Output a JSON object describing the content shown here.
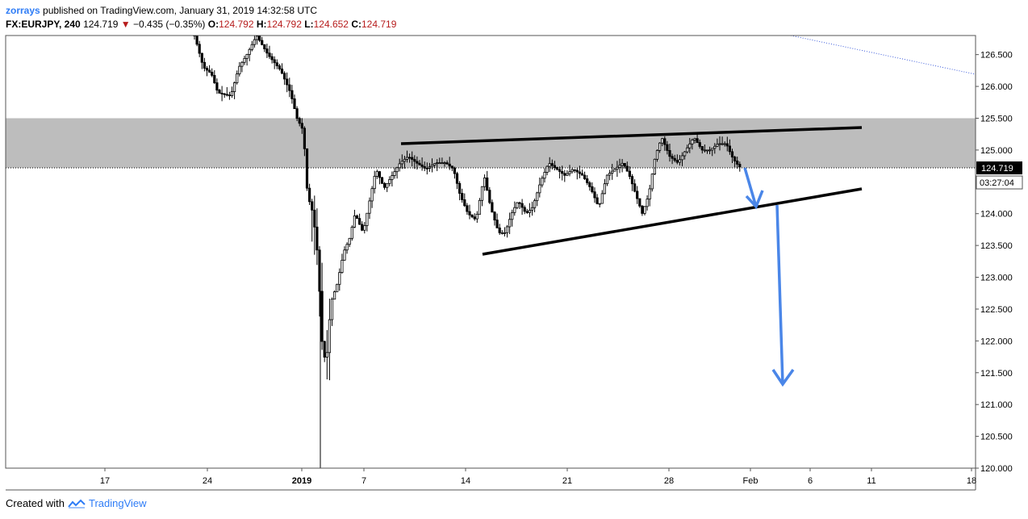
{
  "header": {
    "author": "zorrays",
    "published_text": "published on TradingView.com, January 31, 2019 14:32:58 UTC",
    "symbol": "FX:EURJPY, 240",
    "last": "124.719",
    "change": "−0.435 (−0.35%)",
    "o_label": "O:",
    "o": "124.792",
    "h_label": "H:",
    "h": "124.792",
    "l_label": "L:",
    "l": "124.652",
    "c_label": "C:",
    "c": "124.719"
  },
  "footer": {
    "created_with": "Created with",
    "brand": "TradingView"
  },
  "colors": {
    "down_text": "#b71c1c",
    "brand": "#2e7cf6",
    "zone": "#bdbdbd",
    "arrow": "#4a86e8",
    "trendline": "#000000"
  },
  "chart_data": {
    "type": "candlestick",
    "title": "",
    "xlabel": "",
    "ylabel": "",
    "ylim": [
      120.0,
      126.8
    ],
    "y_ticks": [
      "126.500",
      "126.000",
      "125.500",
      "125.000",
      "124.500",
      "124.000",
      "123.500",
      "123.000",
      "122.500",
      "122.000",
      "121.500",
      "121.000",
      "120.500",
      "120.000"
    ],
    "x_ticks": [
      "17",
      "24",
      "2019",
      "7",
      "14",
      "21",
      "28",
      "Feb",
      "6",
      "11",
      "18"
    ],
    "price_label": "124.719",
    "countdown_label": "03:27:04",
    "current_price": 124.719,
    "resistance_zone": [
      124.72,
      125.5
    ],
    "grid": false
  }
}
